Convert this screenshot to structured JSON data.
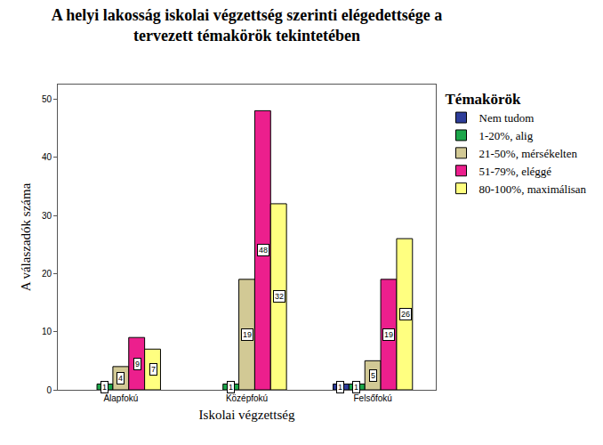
{
  "chart_data": {
    "type": "bar",
    "title": "A helyi lakosság iskolai végzettség szerinti elégedettsége a\ntervezett témakörök tekintetében",
    "x_label": "Iskolai végzettség",
    "y_label": "A válaszadók száma",
    "legend_title": "Témakörök",
    "legend": "right",
    "categories": [
      "Alapfokú",
      "Középfokú",
      "Felsőfokú"
    ],
    "series": [
      {
        "name": "Nem tudom",
        "color": "#2e3d9a",
        "values": [
          null,
          null,
          1
        ]
      },
      {
        "name": "1-20%, alig",
        "color": "#1ca64a",
        "values": [
          1,
          1,
          1
        ]
      },
      {
        "name": "21-50%, mérsékelten",
        "color": "#d2c995",
        "values": [
          4,
          19,
          5
        ]
      },
      {
        "name": "51-79%, eléggé",
        "color": "#ec1f8d",
        "values": [
          9,
          48,
          19
        ]
      },
      {
        "name": "80-100%, maximálisan",
        "color": "#ffff80",
        "values": [
          7,
          32,
          26
        ]
      }
    ],
    "ylim": [
      0,
      52.5
    ],
    "yticks": [
      0,
      10,
      20,
      30,
      40,
      50
    ],
    "grid": false,
    "data_labels": true
  }
}
